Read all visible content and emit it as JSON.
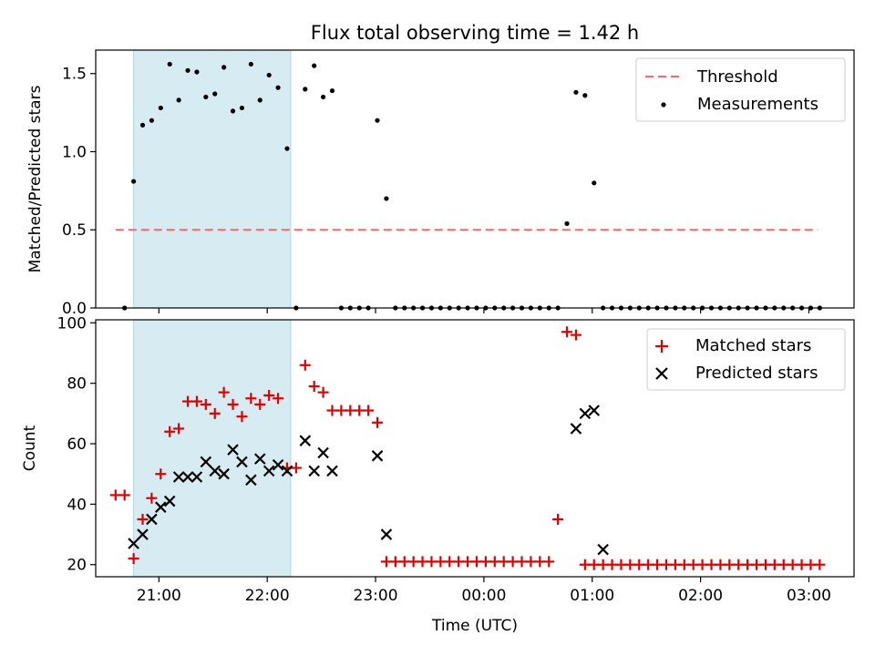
{
  "chart_data": [
    {
      "type": "scatter",
      "title": "Flux total observing time = 1.42 h",
      "xlabel": "",
      "ylabel": "Matched/Predicted stars",
      "ylim": [
        0,
        1.65
      ],
      "xlim": [
        "20:25",
        "03:25"
      ],
      "yticks": [
        "0.0",
        "0.5",
        "1.0",
        "1.5"
      ],
      "grid": false,
      "legend_position": "top-right",
      "shaded_span": {
        "start": "20:46",
        "end": "22:13",
        "color": "#add8e6"
      },
      "threshold": {
        "name": "Threshold",
        "value": 0.5,
        "x_start": "20:36",
        "x_end": "03:05",
        "color": "#ff6666"
      },
      "series": [
        {
          "name": "Measurements",
          "color": "#000000",
          "x": [
            "20:41",
            "20:46",
            "20:51",
            "20:56",
            "21:01",
            "21:06",
            "21:11",
            "21:16",
            "21:21",
            "21:26",
            "21:31",
            "21:36",
            "21:41",
            "21:46",
            "21:51",
            "21:56",
            "22:01",
            "22:06",
            "22:11",
            "22:16",
            "22:21",
            "22:26",
            "22:31",
            "22:36",
            "22:41",
            "22:46",
            "22:51",
            "22:56",
            "23:01",
            "23:06",
            "23:11",
            "23:16",
            "23:21",
            "23:26",
            "23:31",
            "23:36",
            "23:41",
            "23:46",
            "23:51",
            "23:56",
            "00:01",
            "00:06",
            "00:11",
            "00:16",
            "00:21",
            "00:26",
            "00:31",
            "00:36",
            "00:41",
            "00:46",
            "00:51",
            "00:56",
            "01:01",
            "01:06",
            "01:11",
            "01:16",
            "01:21",
            "01:26",
            "01:31",
            "01:36",
            "01:41",
            "01:46",
            "01:51",
            "01:56",
            "02:01",
            "02:06",
            "02:11",
            "02:16",
            "02:21",
            "02:26",
            "02:31",
            "02:36",
            "02:41",
            "02:46",
            "02:51",
            "02:56",
            "03:01",
            "03:06"
          ],
          "y": [
            0.0,
            0.81,
            1.17,
            1.2,
            1.28,
            1.56,
            1.33,
            1.52,
            1.51,
            1.35,
            1.37,
            1.54,
            1.26,
            1.28,
            1.56,
            1.33,
            1.49,
            1.41,
            1.02,
            0.0,
            1.4,
            1.55,
            1.35,
            1.39,
            0.0,
            0.0,
            0.0,
            0.0,
            1.2,
            0.7,
            0.0,
            0.0,
            0.0,
            0.0,
            0.0,
            0.0,
            0.0,
            0.0,
            0.0,
            0.0,
            0.0,
            0.0,
            0.0,
            0.0,
            0.0,
            0.0,
            0.0,
            0.0,
            0.0,
            0.54,
            1.38,
            1.36,
            0.8,
            0.0,
            0.0,
            0.0,
            0.0,
            0.0,
            0.0,
            0.0,
            0.0,
            0.0,
            0.0,
            0.0,
            0.0,
            0.0,
            0.0,
            0.0,
            0.0,
            0.0,
            0.0,
            0.0,
            0.0,
            0.0,
            0.0,
            0.0,
            0.0,
            0.0
          ]
        }
      ]
    },
    {
      "type": "scatter",
      "title": "",
      "xlabel": "Time (UTC)",
      "ylabel": "Count",
      "ylim": [
        16,
        101
      ],
      "xlim": [
        "20:25",
        "03:25"
      ],
      "yticks": [
        "20",
        "40",
        "60",
        "80",
        "100"
      ],
      "xticks": [
        "21:00",
        "22:00",
        "23:00",
        "00:00",
        "01:00",
        "02:00",
        "03:00"
      ],
      "grid": false,
      "legend_position": "top-right",
      "shaded_span": {
        "start": "20:46",
        "end": "22:13",
        "color": "#add8e6"
      },
      "series": [
        {
          "name": "Matched stars",
          "marker": "plus",
          "color": "#e00000",
          "x": [
            "20:36",
            "20:41",
            "20:46",
            "20:51",
            "20:56",
            "21:01",
            "21:06",
            "21:11",
            "21:16",
            "21:21",
            "21:26",
            "21:31",
            "21:36",
            "21:41",
            "21:46",
            "21:51",
            "21:56",
            "22:01",
            "22:06",
            "22:11",
            "22:16",
            "22:21",
            "22:26",
            "22:31",
            "22:36",
            "22:41",
            "22:46",
            "22:51",
            "22:56",
            "23:01",
            "23:06",
            "23:11",
            "23:16",
            "23:21",
            "23:26",
            "23:31",
            "23:36",
            "23:41",
            "23:46",
            "23:51",
            "23:56",
            "00:01",
            "00:06",
            "00:11",
            "00:16",
            "00:21",
            "00:26",
            "00:31",
            "00:36",
            "00:41",
            "00:46",
            "00:51",
            "00:56",
            "01:01",
            "01:06",
            "01:11",
            "01:16",
            "01:21",
            "01:26",
            "01:31",
            "01:36",
            "01:41",
            "01:46",
            "01:51",
            "01:56",
            "02:01",
            "02:06",
            "02:11",
            "02:16",
            "02:21",
            "02:26",
            "02:31",
            "02:36",
            "02:41",
            "02:46",
            "02:51",
            "02:56",
            "03:01",
            "03:06"
          ],
          "y": [
            43,
            43,
            22,
            35,
            42,
            50,
            64,
            65,
            74,
            74,
            73,
            70,
            77,
            73,
            69,
            75,
            73,
            76,
            75,
            52,
            52,
            86,
            79,
            77,
            71,
            71,
            71,
            71,
            71,
            67,
            21,
            21,
            21,
            21,
            21,
            21,
            21,
            21,
            21,
            21,
            21,
            21,
            21,
            21,
            21,
            21,
            21,
            21,
            21,
            35,
            97,
            96,
            20,
            20,
            20,
            20,
            20,
            20,
            20,
            20,
            20,
            20,
            20,
            20,
            20,
            20,
            20,
            20,
            20,
            20,
            20,
            20,
            20,
            20,
            20,
            20,
            20,
            20,
            20
          ]
        },
        {
          "name": "Predicted stars",
          "marker": "x",
          "color": "#000000",
          "x": [
            "20:46",
            "20:51",
            "20:56",
            "21:01",
            "21:06",
            "21:11",
            "21:16",
            "21:21",
            "21:26",
            "21:31",
            "21:36",
            "21:41",
            "21:46",
            "21:51",
            "21:56",
            "22:01",
            "22:06",
            "22:11",
            "22:21",
            "22:26",
            "22:31",
            "22:36",
            "23:01",
            "23:06",
            "00:51",
            "00:56",
            "01:01",
            "01:06"
          ],
          "y": [
            27,
            30,
            35,
            39,
            41,
            49,
            49,
            49,
            54,
            51,
            50,
            58,
            54,
            48,
            55,
            51,
            53,
            51,
            61,
            51,
            57,
            51,
            56,
            30,
            65,
            70,
            71,
            25
          ]
        }
      ]
    }
  ]
}
